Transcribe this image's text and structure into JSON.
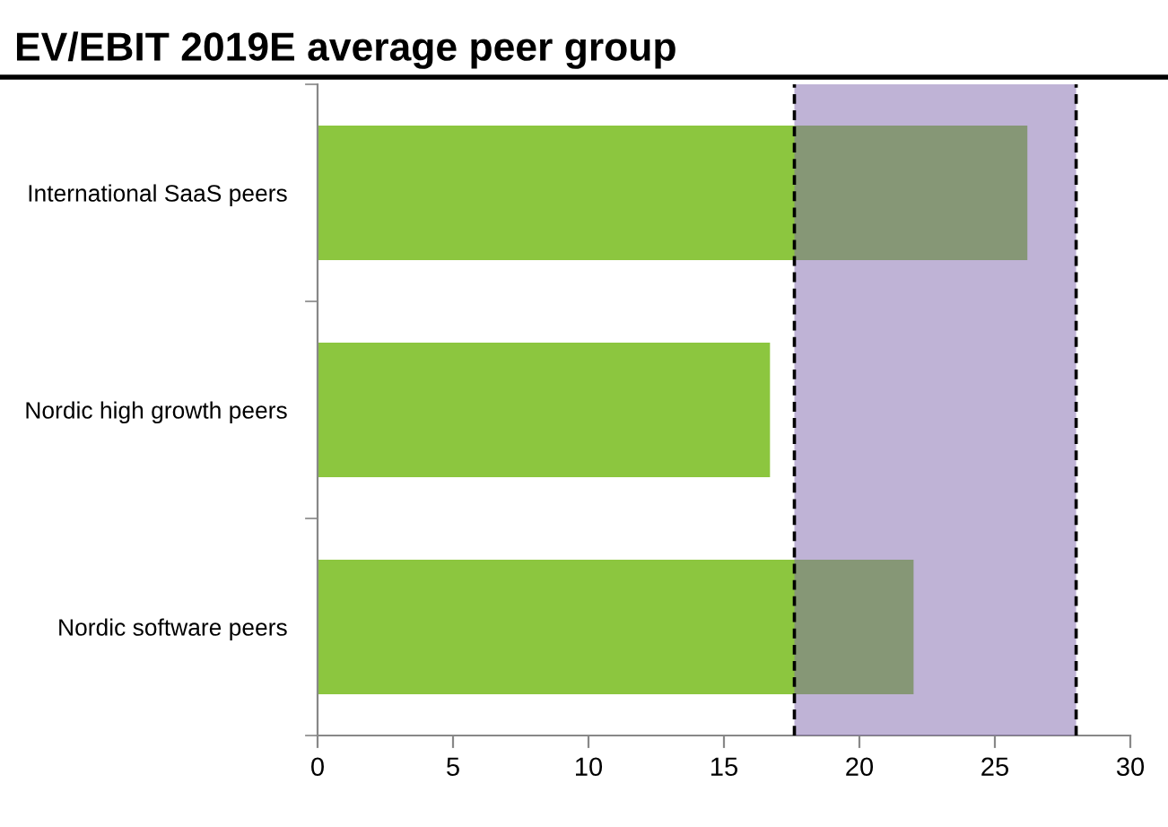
{
  "chart_data": {
    "type": "bar",
    "orientation": "horizontal",
    "title": "EV/EBIT 2019E average peer group",
    "categories": [
      "International SaaS peers",
      "Nordic high growth peers",
      "Nordic software peers"
    ],
    "values": [
      26.2,
      16.7,
      22.0
    ],
    "color": "#8cc63f",
    "xlim": [
      0,
      30
    ],
    "xticks": [
      0,
      5,
      10,
      15,
      20,
      25,
      30
    ],
    "grid": false,
    "bands": [
      {
        "axis": "x",
        "from": 17.6,
        "to": 28.0,
        "color": "#7f67ad"
      }
    ],
    "ref_lines": [
      {
        "axis": "x",
        "value": 17.6,
        "color": "#000000",
        "line_style": "dashed"
      },
      {
        "axis": "x",
        "value": 28.0,
        "color": "#000000",
        "line_style": "dashed"
      }
    ]
  }
}
